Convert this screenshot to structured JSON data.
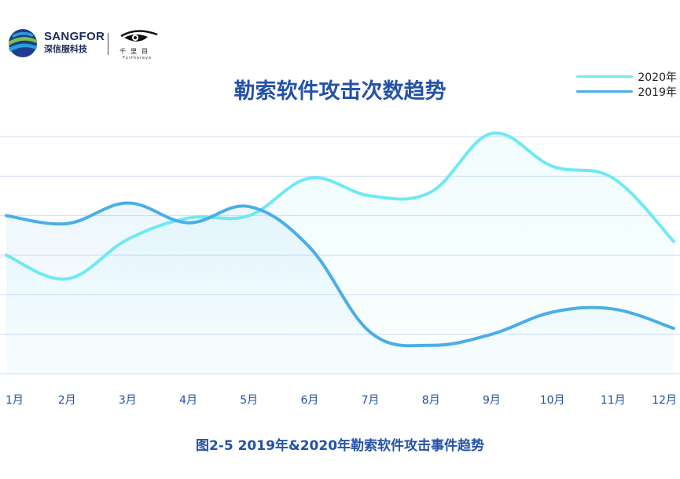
{
  "brand": {
    "name": "SANGFOR",
    "subname": "深信服科技",
    "partner_name": "千里目",
    "partner_sub": "Furthereye"
  },
  "colors": {
    "series_2020": "#6fe9f3",
    "series_2019": "#4aaee8",
    "title": "#2452a8",
    "grid": "#d3dcf3"
  },
  "chart_data": {
    "type": "line",
    "title": "勒索软件攻击次数趋势",
    "categories": [
      "1月",
      "2月",
      "3月",
      "4月",
      "5月",
      "6月",
      "7月",
      "8月",
      "9月",
      "10月",
      "11月",
      "12月"
    ],
    "series": [
      {
        "name": "2020年",
        "values": [
          3.0,
          2.4,
          3.4,
          3.94,
          4.0,
          4.95,
          4.5,
          4.6,
          6.08,
          5.25,
          4.95,
          3.35
        ]
      },
      {
        "name": "2019年",
        "values": [
          4.0,
          3.8,
          4.32,
          3.82,
          4.23,
          3.2,
          1.05,
          0.72,
          1.0,
          1.56,
          1.64,
          1.15
        ]
      }
    ],
    "ylim": [
      0,
      6.0
    ],
    "grid": true,
    "legend_position": "top-right",
    "caption": "图2-5 2019年&2020年勒索软件攻击事件趋势"
  }
}
